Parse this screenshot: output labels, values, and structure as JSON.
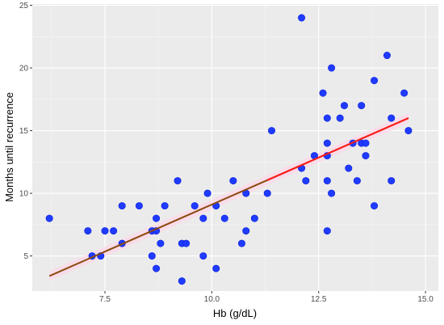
{
  "colors": {
    "panel": "#ebebeb",
    "grid_major": "#ffffff",
    "grid_minor": "#f5f5f5",
    "point_fill": "#1f3bff",
    "point_stroke": "#0a1fd8",
    "fit_line": "#ff1a1a",
    "fit_line_dark": "#8b4a10",
    "ci_band": "#ffd6e8"
  },
  "chart_data": {
    "type": "scatter",
    "xlabel": "Hb (g/dL)",
    "ylabel": "Months until recurrence",
    "xlim": [
      5.8,
      15.3
    ],
    "ylim": [
      2.2,
      25.1
    ],
    "xticks": [
      7.5,
      10.0,
      12.5,
      15.0
    ],
    "xtick_labels": [
      "7.5",
      "10.0",
      "12.5",
      "15.0"
    ],
    "yticks": [
      5,
      10,
      15,
      20,
      25
    ],
    "ytick_labels": [
      "5",
      "10",
      "15",
      "20",
      "25"
    ],
    "grid": true,
    "legend": "none",
    "points": [
      [
        6.2,
        8
      ],
      [
        7.1,
        7
      ],
      [
        7.2,
        5
      ],
      [
        7.4,
        5
      ],
      [
        7.5,
        7
      ],
      [
        7.7,
        7
      ],
      [
        7.9,
        9
      ],
      [
        7.9,
        6
      ],
      [
        8.3,
        9
      ],
      [
        8.6,
        7
      ],
      [
        8.6,
        5
      ],
      [
        8.7,
        7
      ],
      [
        8.7,
        8
      ],
      [
        8.7,
        4
      ],
      [
        8.8,
        6
      ],
      [
        8.9,
        9
      ],
      [
        9.2,
        11
      ],
      [
        9.3,
        6
      ],
      [
        9.3,
        3
      ],
      [
        9.4,
        6
      ],
      [
        9.6,
        9
      ],
      [
        9.8,
        8
      ],
      [
        9.8,
        5
      ],
      [
        9.9,
        10
      ],
      [
        10.1,
        9
      ],
      [
        10.1,
        4
      ],
      [
        10.3,
        8
      ],
      [
        10.5,
        11
      ],
      [
        10.7,
        6
      ],
      [
        10.8,
        7
      ],
      [
        10.8,
        10
      ],
      [
        11.0,
        8
      ],
      [
        11.3,
        10
      ],
      [
        11.4,
        15
      ],
      [
        12.1,
        24
      ],
      [
        12.1,
        12
      ],
      [
        12.2,
        11
      ],
      [
        12.4,
        13
      ],
      [
        12.6,
        18
      ],
      [
        12.7,
        16
      ],
      [
        12.7,
        14
      ],
      [
        12.7,
        13
      ],
      [
        12.7,
        11
      ],
      [
        12.7,
        7
      ],
      [
        12.8,
        20
      ],
      [
        12.8,
        10
      ],
      [
        13.0,
        16
      ],
      [
        13.1,
        17
      ],
      [
        13.2,
        12
      ],
      [
        13.3,
        14
      ],
      [
        13.4,
        11
      ],
      [
        13.5,
        17
      ],
      [
        13.5,
        14
      ],
      [
        13.6,
        14
      ],
      [
        13.6,
        13
      ],
      [
        13.8,
        19
      ],
      [
        13.8,
        9
      ],
      [
        14.1,
        21
      ],
      [
        14.2,
        16
      ],
      [
        14.2,
        11
      ],
      [
        14.5,
        18
      ],
      [
        14.6,
        15
      ]
    ],
    "fit_line": {
      "x": [
        6.2,
        14.6
      ],
      "y": [
        3.4,
        16.0
      ]
    }
  }
}
